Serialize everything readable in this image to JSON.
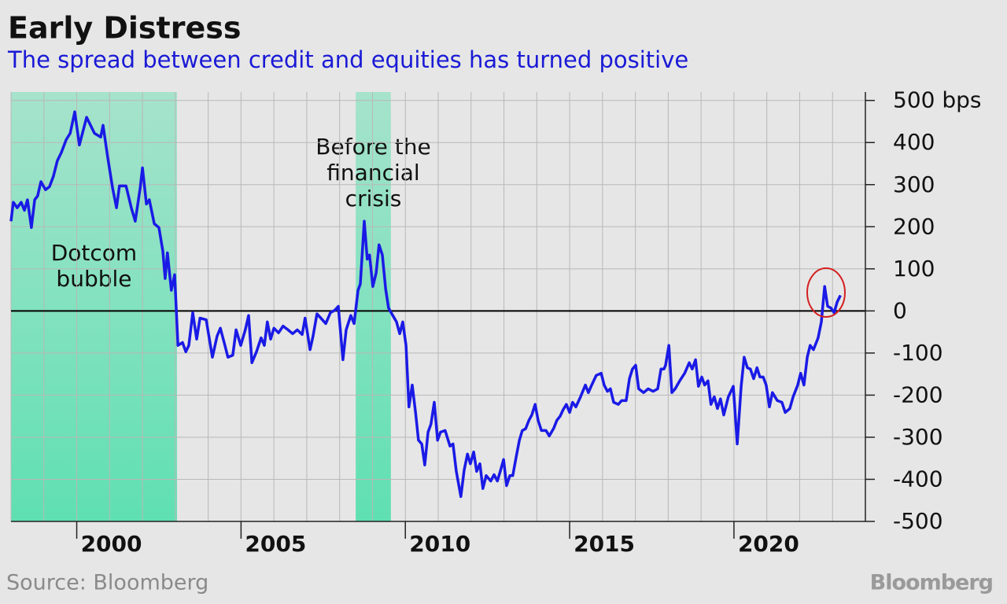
{
  "chart_data": {
    "type": "line",
    "title": "Early Distress",
    "subtitle": "The spread between credit and equities has turned positive",
    "source": "Source: Bloomberg",
    "logo": "Bloomberg",
    "color": "#1a1ae6",
    "xlim": [
      1998,
      2024
    ],
    "xticks": [
      2000,
      2005,
      2010,
      2015,
      2020
    ],
    "ylim": [
      -500,
      520
    ],
    "yticks": [
      {
        "value": 500,
        "label": "500 bps"
      },
      400,
      300,
      200,
      100,
      0,
      -100,
      -200,
      -300,
      -400,
      -500
    ],
    "grid": true,
    "shaded": [
      {
        "start": 1998,
        "end": 2003.05,
        "label_lines": [
          "Dotcom",
          "bubble"
        ]
      },
      {
        "start": 2008.49,
        "end": 2009.56,
        "label_lines": [
          "Before the",
          "financial",
          "crisis"
        ]
      }
    ],
    "x": [
      1998.0,
      1998.07,
      1998.19,
      1998.31,
      1998.41,
      1998.5,
      1998.62,
      1998.72,
      1998.81,
      1998.91,
      1999.05,
      1999.17,
      1999.29,
      1999.41,
      1999.53,
      1999.68,
      1999.8,
      1999.94,
      2000.08,
      2000.3,
      2000.54,
      2000.73,
      2000.8,
      2000.94,
      2001.09,
      2001.21,
      2001.3,
      2001.5,
      2001.66,
      2001.78,
      2001.93,
      2002.0,
      2002.12,
      2002.21,
      2002.36,
      2002.5,
      2002.62,
      2002.69,
      2002.76,
      2002.88,
      2002.98,
      2003.08,
      2003.22,
      2003.32,
      2003.41,
      2003.53,
      2003.65,
      2003.75,
      2003.94,
      2004.03,
      2004.13,
      2004.27,
      2004.37,
      2004.51,
      2004.6,
      2004.75,
      2004.85,
      2004.99,
      2005.13,
      2005.23,
      2005.33,
      2005.47,
      2005.61,
      2005.71,
      2005.8,
      2005.9,
      2006.0,
      2006.14,
      2006.28,
      2006.43,
      2006.57,
      2006.71,
      2006.86,
      2006.95,
      2007.1,
      2007.19,
      2007.31,
      2007.43,
      2007.58,
      2007.72,
      2007.86,
      2007.96,
      2008.1,
      2008.2,
      2008.34,
      2008.44,
      2008.56,
      2008.63,
      2008.75,
      2008.84,
      2008.91,
      2009.01,
      2009.11,
      2009.2,
      2009.3,
      2009.4,
      2009.49,
      2009.59,
      2009.73,
      2009.83,
      2009.92,
      2010.02,
      2010.11,
      2010.21,
      2010.31,
      2010.4,
      2010.5,
      2010.59,
      2010.69,
      2010.78,
      2010.88,
      2010.98,
      2011.07,
      2011.21,
      2011.36,
      2011.45,
      2011.55,
      2011.69,
      2011.79,
      2011.89,
      2011.98,
      2012.08,
      2012.17,
      2012.27,
      2012.36,
      2012.46,
      2012.6,
      2012.7,
      2012.8,
      2012.89,
      2012.99,
      2013.08,
      2013.18,
      2013.27,
      2013.37,
      2013.47,
      2013.56,
      2013.66,
      2013.76,
      2013.85,
      2013.95,
      2014.04,
      2014.14,
      2014.28,
      2014.38,
      2014.52,
      2014.61,
      2014.71,
      2014.8,
      2014.9,
      2015.0,
      2015.09,
      2015.19,
      2015.33,
      2015.48,
      2015.57,
      2015.67,
      2015.81,
      2015.96,
      2016.05,
      2016.15,
      2016.24,
      2016.34,
      2016.48,
      2016.58,
      2016.72,
      2016.82,
      2016.91,
      2017.01,
      2017.1,
      2017.25,
      2017.39,
      2017.54,
      2017.68,
      2017.78,
      2017.87,
      2017.92,
      2018.02,
      2018.11,
      2018.21,
      2018.35,
      2018.5,
      2018.64,
      2018.73,
      2018.83,
      2018.92,
      2019.02,
      2019.11,
      2019.21,
      2019.3,
      2019.4,
      2019.5,
      2019.59,
      2019.69,
      2019.83,
      2019.98,
      2020.1,
      2020.22,
      2020.31,
      2020.41,
      2020.5,
      2020.6,
      2020.7,
      2020.79,
      2020.89,
      2020.98,
      2021.08,
      2021.17,
      2021.32,
      2021.46,
      2021.56,
      2021.7,
      2021.8,
      2021.94,
      2022.03,
      2022.13,
      2022.23,
      2022.32,
      2022.42,
      2022.56,
      2022.66,
      2022.76,
      2022.85,
      2022.95,
      2023.05,
      2023.14,
      2023.24
    ],
    "values": [
      213,
      258,
      245,
      258,
      239,
      264,
      198,
      264,
      273,
      307,
      288,
      295,
      320,
      357,
      376,
      407,
      422,
      473,
      394,
      460,
      422,
      413,
      441,
      366,
      292,
      245,
      297,
      297,
      245,
      213,
      292,
      340,
      254,
      264,
      207,
      198,
      142,
      77,
      138,
      49,
      86,
      -82,
      -75,
      -97,
      -82,
      -4,
      -67,
      -17,
      -21,
      -64,
      -110,
      -60,
      -41,
      -82,
      -110,
      -105,
      -45,
      -82,
      -45,
      -11,
      -123,
      -97,
      -64,
      -82,
      -26,
      -67,
      -41,
      -52,
      -36,
      -45,
      -54,
      -45,
      -56,
      -17,
      -92,
      -60,
      -7,
      -17,
      -30,
      -4,
      2,
      11,
      -116,
      -45,
      -11,
      -30,
      49,
      64,
      213,
      123,
      133,
      58,
      90,
      157,
      133,
      52,
      7,
      -7,
      -26,
      -54,
      -26,
      -82,
      -228,
      -176,
      -241,
      -307,
      -316,
      -366,
      -288,
      -269,
      -217,
      -307,
      -288,
      -284,
      -321,
      -316,
      -381,
      -441,
      -378,
      -340,
      -363,
      -335,
      -381,
      -363,
      -422,
      -391,
      -404,
      -389,
      -404,
      -381,
      -353,
      -415,
      -391,
      -391,
      -348,
      -307,
      -284,
      -280,
      -260,
      -247,
      -222,
      -260,
      -284,
      -284,
      -297,
      -278,
      -260,
      -250,
      -235,
      -222,
      -241,
      -217,
      -228,
      -204,
      -176,
      -194,
      -176,
      -153,
      -148,
      -176,
      -191,
      -185,
      -217,
      -222,
      -213,
      -213,
      -161,
      -138,
      -129,
      -185,
      -194,
      -185,
      -191,
      -185,
      -138,
      -138,
      -129,
      -82,
      -194,
      -185,
      -166,
      -148,
      -123,
      -138,
      -116,
      -179,
      -157,
      -176,
      -166,
      -222,
      -204,
      -232,
      -209,
      -247,
      -204,
      -179,
      -316,
      -179,
      -110,
      -135,
      -138,
      -161,
      -135,
      -157,
      -157,
      -176,
      -228,
      -194,
      -213,
      -217,
      -241,
      -232,
      -204,
      -176,
      -148,
      -176,
      -110,
      -82,
      -92,
      -64,
      -26,
      58,
      11,
      7,
      -4,
      21,
      37
    ]
  }
}
